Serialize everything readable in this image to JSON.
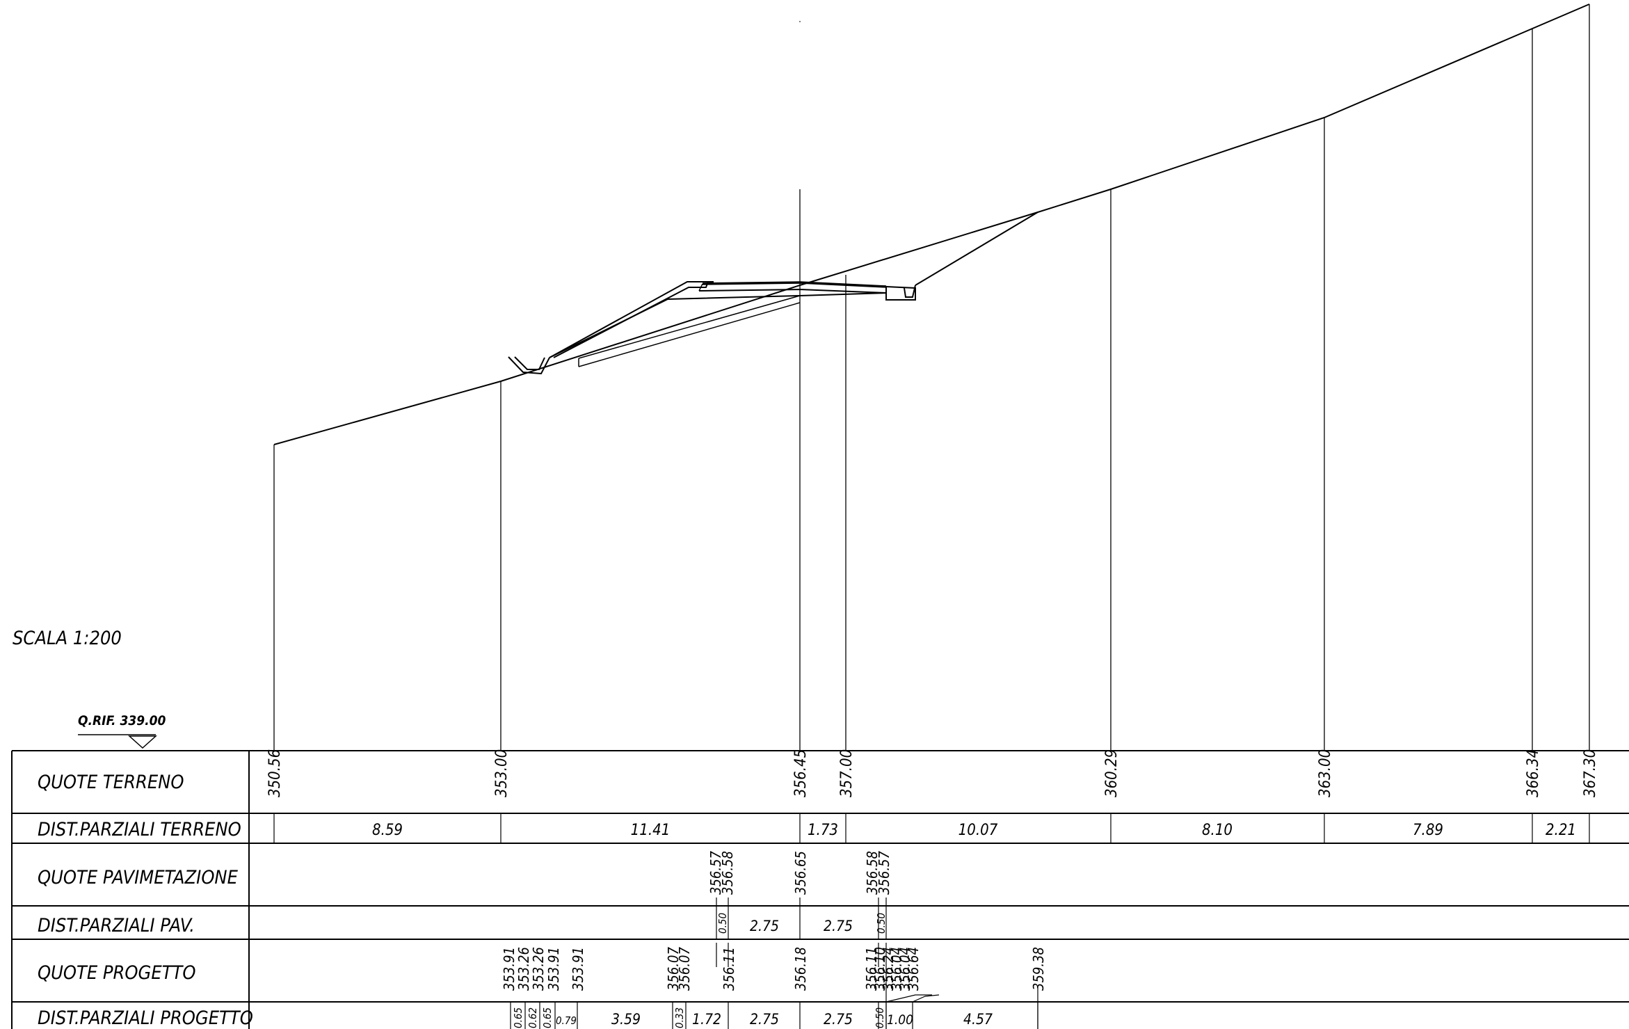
{
  "scale_label": "SCALA 1:200",
  "reference_label": "Q.RIF. 339.00",
  "row_labels": {
    "quote_terreno": "QUOTE TERRENO",
    "dist_terreno": "DIST.PARZIALI TERRENO",
    "quote_pav": "QUOTE PAVIMETAZIONE",
    "dist_pav": "DIST.PARZIALI PAV.",
    "quote_progetto": "QUOTE PROGETTO",
    "dist_progetto": "DIST.PARZIALI PROGETTO"
  },
  "terrain": {
    "elevations": [
      "350.56",
      "353.00",
      "356.45",
      "357.00",
      "360.29",
      "363.00",
      "366.34",
      "367.30"
    ],
    "distances": [
      "8.59",
      "11.41",
      "1.73",
      "10.07",
      "8.10",
      "7.89",
      "2.21"
    ]
  },
  "pavement": {
    "elevations": [
      "356.57",
      "356.58",
      "356.65",
      "356.58",
      "356.57"
    ],
    "distances": [
      "0.50",
      "2.75",
      "2.75",
      "0.50"
    ]
  },
  "project": {
    "elevations": [
      "353.91",
      "353.26",
      "353.26",
      "353.91",
      "353.91",
      "356.07",
      "356.07",
      "356.11",
      "356.18",
      "356.11",
      "356.10",
      "356.24",
      "356.04",
      "356.04",
      "356.64",
      "359.38"
    ],
    "distances": [
      "0.65",
      "0.62",
      "0.65",
      "0.79",
      "3.59",
      "0.33",
      "1.72",
      "2.75",
      "2.75",
      "0.50",
      "1.00",
      "4.57"
    ]
  }
}
